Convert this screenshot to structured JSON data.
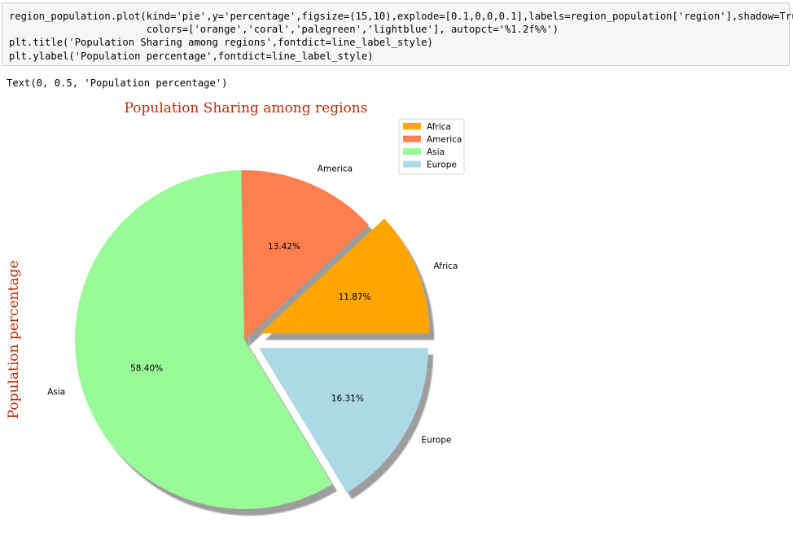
{
  "code_cell": {
    "lines": [
      "region_population.plot(kind='pie',y='percentage',figsize=(15,10),explode=[0.1,0,0,0.1],labels=region_population['region'],shadow=True,",
      "                       colors=['orange','coral','palegreen','lightblue'], autopct='%1.2f%%')",
      "plt.title('Population Sharing among regions',fontdict=line_label_style)",
      "plt.ylabel('Population percentage',fontdict=line_label_style)"
    ]
  },
  "output": {
    "text": "Text(0, 0.5, 'Population percentage')"
  },
  "chart_data": {
    "type": "pie",
    "title": "Population Sharing among regions",
    "ylabel": "Population percentage",
    "categories": [
      "Africa",
      "America",
      "Asia",
      "Europe"
    ],
    "values": [
      11.87,
      13.42,
      58.4,
      16.31
    ],
    "value_labels": [
      "11.87%",
      "13.42%",
      "58.40%",
      "16.31%"
    ],
    "colors": [
      "#ffa500",
      "#ff7f50",
      "#98fb98",
      "#add8e6"
    ],
    "explode": [
      0.1,
      0,
      0,
      0.1
    ],
    "shadow": true,
    "start_angle": 0,
    "title_color": "#b5310f",
    "legend": {
      "location": "upper right",
      "entries": [
        "Africa",
        "America",
        "Asia",
        "Europe"
      ]
    }
  }
}
